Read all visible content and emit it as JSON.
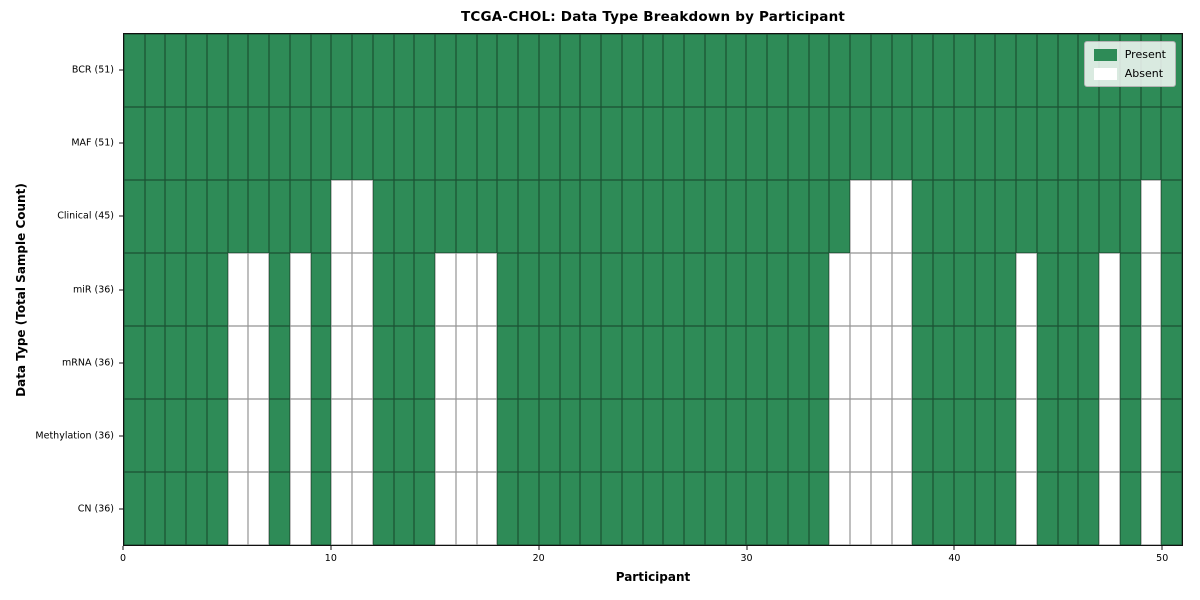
{
  "chart_data": {
    "type": "heatmap",
    "title": "TCGA-CHOL: Data Type Breakdown by Participant",
    "xlabel": "Participant",
    "ylabel": "Data Type (Total Sample Count)",
    "n_participants": 51,
    "x_axis_range": [
      0,
      51
    ],
    "x_ticks": [
      0,
      10,
      20,
      30,
      40,
      50
    ],
    "grid": true,
    "rows": [
      {
        "data_type": "BCR",
        "label": "BCR (51)",
        "present_count": 51,
        "absent_participants": []
      },
      {
        "data_type": "MAF",
        "label": "MAF (51)",
        "present_count": 51,
        "absent_participants": []
      },
      {
        "data_type": "Clinical",
        "label": "Clinical (45)",
        "present_count": 45,
        "absent_participants": [
          10,
          11,
          35,
          36,
          37,
          49
        ]
      },
      {
        "data_type": "miR",
        "label": "miR (36)",
        "present_count": 36,
        "absent_participants": [
          5,
          6,
          8,
          10,
          11,
          15,
          16,
          17,
          34,
          35,
          36,
          37,
          43,
          47,
          49
        ]
      },
      {
        "data_type": "mRNA",
        "label": "mRNA (36)",
        "present_count": 36,
        "absent_participants": [
          5,
          6,
          8,
          10,
          11,
          15,
          16,
          17,
          34,
          35,
          36,
          37,
          43,
          47,
          49
        ]
      },
      {
        "data_type": "Methylation",
        "label": "Methylation (36)",
        "present_count": 36,
        "absent_participants": [
          5,
          6,
          8,
          10,
          11,
          15,
          16,
          17,
          34,
          35,
          36,
          37,
          43,
          47,
          49
        ]
      },
      {
        "data_type": "CN",
        "label": "CN (36)",
        "present_count": 36,
        "absent_participants": [
          5,
          6,
          8,
          10,
          11,
          15,
          16,
          17,
          34,
          35,
          36,
          37,
          43,
          47,
          49
        ]
      }
    ],
    "legend": {
      "position": "upper right",
      "entries": [
        {
          "label": "Present",
          "color": "#2e8b57"
        },
        {
          "label": "Absent",
          "color": "#ffffff"
        }
      ]
    },
    "colors": {
      "present": "#2e8b57",
      "absent": "#ffffff",
      "cell_line": "rgba(0,0,0,0.42)",
      "axis_border": "#111111",
      "legend_border": "#b3b3b3"
    }
  }
}
